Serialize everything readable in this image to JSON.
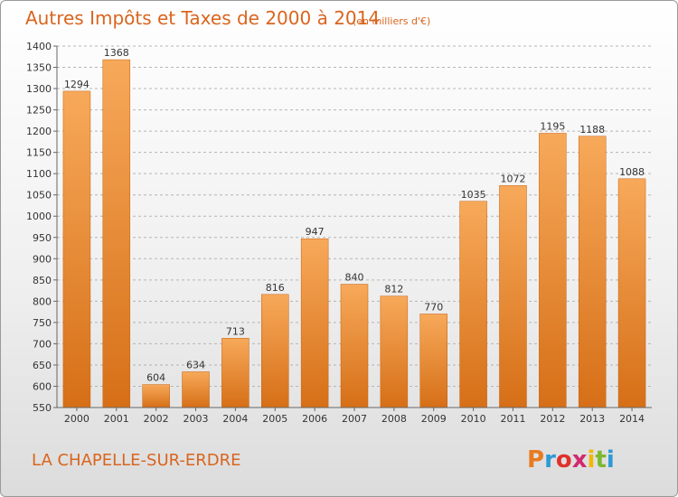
{
  "title": {
    "main": "Autres Impôts et Taxes de 2000 à 2014",
    "sub": "(en milliers d'€)"
  },
  "footer": {
    "location": "LA CHAPELLE-SUR-ERDRE",
    "brand": "Proxiti",
    "brand_colors": [
      "#e87b1f",
      "#2e9ad6",
      "#e0302c",
      "#d12a6e",
      "#f2b705",
      "#7cb82f",
      "#2e9ad6"
    ]
  },
  "chart_data": {
    "type": "bar",
    "categories": [
      "2000",
      "2001",
      "2002",
      "2003",
      "2004",
      "2005",
      "2006",
      "2007",
      "2008",
      "2009",
      "2010",
      "2011",
      "2012",
      "2013",
      "2014"
    ],
    "values": [
      1294,
      1368,
      604,
      634,
      713,
      816,
      947,
      840,
      812,
      770,
      1035,
      1072,
      1195,
      1188,
      1088
    ],
    "ylim": [
      550,
      1400
    ],
    "yticks": [
      550,
      600,
      650,
      700,
      750,
      800,
      850,
      900,
      950,
      1000,
      1050,
      1100,
      1150,
      1200,
      1250,
      1300,
      1350,
      1400
    ],
    "grid": "horizontal-dashed",
    "bar_color_top": "#f7a95a",
    "bar_color_bottom": "#d66f17"
  }
}
